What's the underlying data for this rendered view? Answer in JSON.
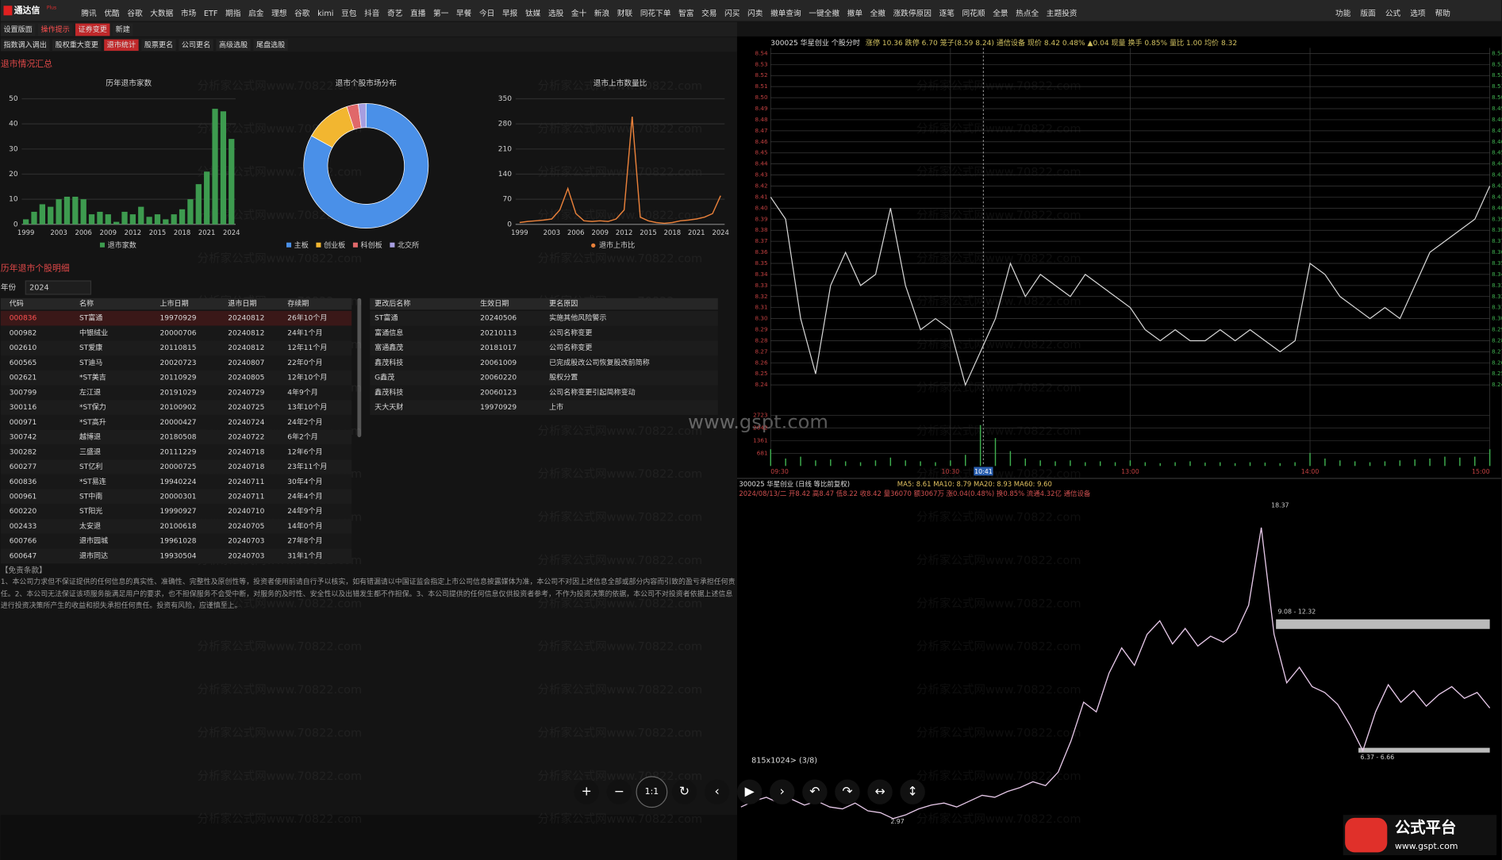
{
  "app": {
    "name": "通达信",
    "badge": "Plus"
  },
  "menu": {
    "items": [
      "腾讯",
      "优酷",
      "谷歌",
      "大数据",
      "市场",
      "ETF",
      "期指",
      "启金",
      "理想",
      "谷歌",
      "kimi",
      "豆包",
      "抖音",
      "奇艺",
      "直播",
      "第一",
      "早餐",
      "今日",
      "早报",
      "钛媒",
      "选股",
      "金十",
      "新浪",
      "财联",
      "同花下单",
      "智富",
      "交易",
      "闪买",
      "闪卖",
      "撤单查询",
      "一键全撤",
      "撤单",
      "全撤",
      "涨跌停原因",
      "逐笔",
      "同花顺",
      "全景",
      "热点全",
      "主题投资"
    ],
    "right": [
      "功能",
      "版面",
      "公式",
      "选项",
      "帮助"
    ]
  },
  "tabs": {
    "items": [
      "设置版面",
      "操作提示",
      "证券变更",
      "新建"
    ],
    "active": 2
  },
  "subtabs": {
    "items": [
      "指数调入调出",
      "股权重大变更",
      "退市统计",
      "股票更名",
      "公司更名",
      "高级选股",
      "尾盘选股"
    ],
    "active": 2
  },
  "summary_title": "退市情况汇总",
  "detail_title": "历年退市个股明细",
  "year_filter": {
    "label": "年份",
    "value": "2024"
  },
  "watermark": "分析家公式网www.70822.com",
  "chart_data": [
    {
      "type": "bar",
      "title": "历年退市家数",
      "categories": [
        "1999",
        null,
        null,
        null,
        "2003",
        null,
        null,
        "2006",
        null,
        null,
        "2009",
        null,
        null,
        "2012",
        null,
        null,
        "2015",
        null,
        null,
        "2018",
        null,
        null,
        "2021",
        null,
        null,
        "2024"
      ],
      "series": [
        {
          "name": "退市家数",
          "color": "#3d9b4f",
          "values": [
            2,
            5,
            8,
            7,
            10,
            11,
            11,
            10,
            4,
            5,
            4,
            1,
            5,
            4,
            7,
            3,
            4,
            2,
            4,
            6,
            10,
            16,
            21,
            46,
            45,
            34
          ]
        }
      ],
      "ylim": [
        0,
        50
      ],
      "yticks": [
        0,
        10,
        20,
        30,
        40,
        50
      ]
    },
    {
      "type": "pie",
      "title": "退市个股市场分布",
      "donut": true,
      "categories": [
        "主板",
        "创业板",
        "科创板",
        "北交所"
      ],
      "values": [
        83,
        12,
        3,
        2
      ],
      "colors": [
        "#4a90e8",
        "#f2b630",
        "#e0686a",
        "#a79ee0"
      ]
    },
    {
      "type": "line",
      "title": "退市上市数量比",
      "categories": [
        "1999",
        null,
        null,
        null,
        "2003",
        null,
        null,
        "2006",
        null,
        null,
        "2009",
        null,
        null,
        "2012",
        null,
        null,
        "2015",
        null,
        null,
        "2018",
        null,
        null,
        "2021",
        null,
        null,
        "2024"
      ],
      "series": [
        {
          "name": "退市上市比",
          "color": "#e8803a",
          "values": [
            5,
            8,
            10,
            12,
            15,
            40,
            100,
            30,
            10,
            8,
            10,
            8,
            15,
            40,
            300,
            20,
            10,
            5,
            3,
            5,
            10,
            12,
            15,
            20,
            30,
            80
          ]
        }
      ],
      "ylim": [
        0,
        350
      ],
      "yticks": [
        0,
        70,
        140,
        210,
        280,
        350
      ]
    },
    {
      "type": "intraday",
      "title": "300025 华星创业  个股分时",
      "subtitle": "涨停 10.36 跌停 6.70 笼子(8.59 8.24) 通信设备 现价 8.42 0.48% ▲0.04 现量 换手 0.85% 量比 1.00 均价 8.32",
      "x": [
        0,
        5,
        10,
        15,
        20,
        25,
        30,
        35,
        40,
        45,
        50,
        55,
        60,
        65,
        70,
        75,
        80,
        85,
        90,
        95,
        100,
        105,
        110,
        115,
        120,
        125,
        130,
        135,
        140,
        145,
        150,
        155,
        160,
        165,
        170,
        175,
        180,
        185,
        190,
        195,
        200,
        205,
        210,
        215,
        220,
        225,
        230,
        235,
        240
      ],
      "values": [
        8.41,
        8.39,
        8.3,
        8.25,
        8.33,
        8.36,
        8.33,
        8.34,
        8.4,
        8.33,
        8.29,
        8.3,
        8.29,
        8.24,
        8.27,
        8.3,
        8.35,
        8.32,
        8.34,
        8.33,
        8.32,
        8.34,
        8.33,
        8.32,
        8.31,
        8.29,
        8.28,
        8.29,
        8.28,
        8.28,
        8.29,
        8.28,
        8.29,
        8.28,
        8.27,
        8.28,
        8.35,
        8.34,
        8.32,
        8.31,
        8.3,
        8.31,
        8.3,
        8.33,
        8.36,
        8.37,
        8.38,
        8.39,
        8.42
      ],
      "color": "#d8d8d8",
      "xlim": [
        0,
        240
      ],
      "xticks": [
        {
          "value": 0,
          "label": "09:30"
        },
        {
          "value": 60,
          "label": "10:30"
        },
        {
          "value": 120,
          "label": "13:00"
        },
        {
          "value": 180,
          "label": "14:00"
        },
        {
          "value": 240,
          "label": "15:00"
        }
      ],
      "cursor": {
        "value": 71,
        "label": "10:41"
      },
      "ylim": [
        8.23,
        8.545
      ],
      "yticks": [
        8.24,
        8.25,
        8.26,
        8.27,
        8.28,
        8.29,
        {
          "value": 8.3,
          "label": "8.30"
        },
        8.31,
        8.32,
        8.33,
        8.34,
        8.35,
        8.36,
        8.37,
        8.38,
        8.39,
        {
          "value": 8.4,
          "label": "8.40"
        },
        8.41,
        8.42,
        8.43,
        8.44,
        8.45,
        8.46,
        8.47,
        8.48,
        8.49,
        {
          "value": 8.5,
          "label": "8.50"
        },
        8.51,
        8.52,
        8.53,
        8.54
      ],
      "volume": {
        "color": "#3fae4f",
        "ylim": [
          0,
          3404
        ],
        "yticks": [
          681,
          1361,
          2042,
          2723
        ],
        "values": [
          900,
          400,
          500,
          300,
          350,
          250,
          200,
          300,
          450,
          300,
          250,
          200,
          300,
          600,
          2200,
          1500,
          800,
          400,
          300,
          250,
          300,
          200,
          250,
          200,
          300,
          200,
          150,
          200,
          250,
          180,
          200,
          150,
          200,
          180,
          150,
          200,
          700,
          400,
          300,
          250,
          200,
          250,
          300,
          350,
          400,
          500,
          450,
          500,
          900
        ]
      }
    },
    {
      "type": "kline",
      "title": "300025 华星创业 (日线 等比前复权)",
      "indicators": "MA5: 8.61  MA10: 8.79  MA20: 8.93  MA60: 9.60",
      "subtitle": "2024/08/13/二  开8.42 高8.47 低8.22 收8.42 量36070 额3067万 涨0.04(0.48%) 换0.85% 流通4.32亿 通信设备",
      "color": "#e6c8e8",
      "ylim": [
        2.2,
        19.5
      ],
      "values": [
        3.6,
        3.9,
        4.1,
        3.8,
        4.0,
        3.7,
        3.9,
        3.6,
        3.5,
        3.8,
        3.4,
        3.3,
        3.0,
        3.2,
        3.5,
        3.7,
        3.8,
        3.6,
        3.9,
        4.2,
        4.1,
        4.4,
        4.6,
        4.9,
        4.7,
        5.4,
        7.0,
        9.0,
        8.5,
        10.5,
        11.8,
        10.9,
        12.5,
        13.2,
        12.0,
        12.8,
        11.9,
        12.4,
        12.1,
        12.6,
        14.0,
        18.0,
        12.5,
        10.0,
        10.8,
        9.8,
        9.5,
        8.9,
        7.8,
        6.5,
        8.5,
        9.9,
        9.0,
        9.6,
        8.8,
        9.4,
        9.8,
        9.2,
        9.5,
        8.7
      ],
      "annotations": [
        "18.37",
        "9.08 - 12.32",
        "6.37 - 6.66",
        "2.97"
      ]
    }
  ],
  "table1": {
    "header": [
      "代码",
      "名称",
      "上市日期",
      "退市日期",
      "存续期"
    ],
    "rows": [
      [
        "000836",
        "ST富通",
        "19970929",
        "20240812",
        "26年10个月"
      ],
      [
        "000982",
        "中银绒业",
        "20000706",
        "20240812",
        "24年1个月"
      ],
      [
        "002610",
        "ST爱康",
        "20110815",
        "20240812",
        "12年11个月"
      ],
      [
        "600565",
        "ST迪马",
        "20020723",
        "20240807",
        "22年0个月"
      ],
      [
        "002621",
        "*ST美吉",
        "20110929",
        "20240805",
        "12年10个月"
      ],
      [
        "300799",
        "左江退",
        "20191029",
        "20240729",
        "4年9个月"
      ],
      [
        "300116",
        "*ST保力",
        "20100902",
        "20240725",
        "13年10个月"
      ],
      [
        "000971",
        "*ST高升",
        "20000427",
        "20240724",
        "24年2个月"
      ],
      [
        "300742",
        "越博退",
        "20180508",
        "20240722",
        "6年2个月"
      ],
      [
        "300282",
        "三盛退",
        "20111229",
        "20240718",
        "12年6个月"
      ],
      [
        "600277",
        "ST亿利",
        "20000725",
        "20240718",
        "23年11个月"
      ],
      [
        "600836",
        "*ST易连",
        "19940224",
        "20240711",
        "30年4个月"
      ],
      [
        "000961",
        "ST中南",
        "20000301",
        "20240711",
        "24年4个月"
      ],
      [
        "600220",
        "ST阳光",
        "19990927",
        "20240710",
        "24年9个月"
      ],
      [
        "002433",
        "太安退",
        "20100618",
        "20240705",
        "14年0个月"
      ],
      [
        "600766",
        "退市园城",
        "19961028",
        "20240703",
        "27年8个月"
      ],
      [
        "600647",
        "退市同达",
        "19930504",
        "20240703",
        "31年1个月"
      ]
    ]
  },
  "table2": {
    "header": [
      "更改后名称",
      "生效日期",
      "更名原因"
    ],
    "rows": [
      [
        "ST富通",
        "20240506",
        "实施其他风险警示"
      ],
      [
        "富通信息",
        "20210113",
        "公司名称变更"
      ],
      [
        "富通鑫茂",
        "20181017",
        "公司名称变更"
      ],
      [
        "鑫茂科技",
        "20061009",
        "已完成股改公司恢复股改前简称"
      ],
      [
        "G鑫茂",
        "20060220",
        "股权分置"
      ],
      [
        "鑫茂科技",
        "20060123",
        "公司名称变更引起简称变动"
      ],
      [
        "天大天财",
        "19970929",
        "上市"
      ]
    ]
  },
  "disclaimer": {
    "title": "【免责条款】",
    "text": "1、本公司力求但不保证提供的任何信息的真实性、准确性、完整性及原创性等，投资者使用前请自行予以核实，如有错漏请以中国证监会指定上市公司信息披露媒体为准，本公司不对因上述信息全部或部分内容而引致的盈亏承担任何责任。2、本公司无法保证该项服务能满足用户的要求，也不担保服务不会受中断，对服务的及时性、安全性以及出错发生都不作担保。3、本公司提供的任何信息仅供投资者参考，不作为投资决策的依据，本公司不对投资者依据上述信息进行投资决策所产生的收益和损失承担任何责任。投资有风险，应谨慎至上。"
  },
  "viewer": {
    "size": "815x1024> (3/8)",
    "site": "www.gspt.com",
    "buttons": [
      "+",
      "−",
      "1:1",
      "↻",
      "‹",
      "▶",
      "›",
      "↶",
      "↷",
      "↔",
      "↕"
    ]
  },
  "logo": {
    "name": "公式平台",
    "url": "www.gspt.com"
  }
}
